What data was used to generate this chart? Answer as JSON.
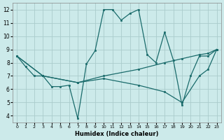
{
  "xlabel": "Humidex (Indice chaleur)",
  "background_color": "#cceaea",
  "grid_color": "#aacccc",
  "line_color": "#1a6b6b",
  "xlim": [
    -0.5,
    23.5
  ],
  "ylim": [
    3.5,
    12.5
  ],
  "xticks": [
    0,
    1,
    2,
    3,
    4,
    5,
    6,
    7,
    8,
    9,
    10,
    11,
    12,
    13,
    14,
    15,
    16,
    17,
    18,
    19,
    20,
    21,
    22,
    23
  ],
  "yticks": [
    4,
    5,
    6,
    7,
    8,
    9,
    10,
    11,
    12
  ],
  "series": [
    {
      "x": [
        0,
        1,
        2,
        3,
        4,
        5,
        6,
        7,
        8,
        9,
        10,
        11,
        12,
        13,
        14,
        15,
        16,
        17,
        18,
        19,
        20,
        21,
        22,
        23
      ],
      "y": [
        8.5,
        7.7,
        7.0,
        7.0,
        6.2,
        6.2,
        6.3,
        3.8,
        7.9,
        8.9,
        12.0,
        12.0,
        11.2,
        11.7,
        12.0,
        8.6,
        8.0,
        10.3,
        8.2,
        4.8,
        7.0,
        8.5,
        8.5,
        9.0
      ]
    },
    {
      "x": [
        0,
        3,
        7,
        10,
        14,
        17,
        19,
        21,
        22,
        23
      ],
      "y": [
        8.5,
        7.0,
        6.5,
        7.0,
        7.5,
        8.0,
        8.3,
        8.6,
        8.7,
        9.0
      ]
    },
    {
      "x": [
        0,
        3,
        7,
        10,
        14,
        17,
        19,
        21,
        22,
        23
      ],
      "y": [
        8.5,
        7.0,
        6.5,
        6.8,
        6.3,
        5.8,
        5.0,
        7.0,
        7.5,
        9.0
      ]
    }
  ]
}
